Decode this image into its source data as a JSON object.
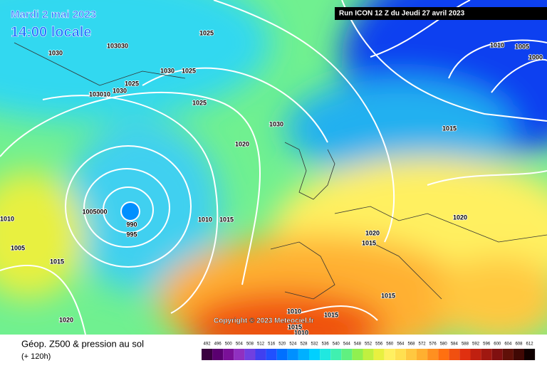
{
  "header": {
    "date": "Mardi 2 mai 2023",
    "time": "14:00 locale",
    "run": "Run ICON 12 Z du Jeudi 27 avril 2023"
  },
  "copyright": "Copyright © 2023 Meteociel.fr",
  "footer": {
    "title": "Géop. Z500 & pression au sol",
    "lead": "(+ 120h)"
  },
  "isobar_labels": [
    "1030",
    "103030",
    "1025",
    "1030",
    "1025",
    "1025",
    "1030",
    "103010",
    "1025",
    "1030",
    "1020",
    "1005000",
    "990",
    "995",
    "1010",
    "1015",
    "1020",
    "1015",
    "1010",
    "1005",
    "1015",
    "1020",
    "1015",
    "1010",
    "1015",
    "1015",
    "1010",
    "1020",
    "1015",
    "1010",
    "1005",
    "1000"
  ],
  "legend": {
    "values": [
      492,
      496,
      500,
      504,
      508,
      512,
      516,
      520,
      524,
      528,
      532,
      536,
      540,
      544,
      548,
      552,
      556,
      560,
      564,
      568,
      572,
      576,
      580,
      584,
      588,
      592,
      596,
      600,
      604,
      608,
      612
    ],
    "colors": [
      "#3a0040",
      "#5a0070",
      "#7a1098",
      "#9030c0",
      "#7040e0",
      "#4040f0",
      "#2050ff",
      "#0070ff",
      "#0090ff",
      "#00b0ff",
      "#00d0ff",
      "#20e8e0",
      "#40f0b0",
      "#60f080",
      "#90f050",
      "#c0f040",
      "#e8f040",
      "#fff060",
      "#ffe050",
      "#ffc840",
      "#ffb030",
      "#ff9020",
      "#ff7010",
      "#f05010",
      "#e03010",
      "#c02010",
      "#a01810",
      "#801010",
      "#601008",
      "#400804",
      "#100000"
    ]
  }
}
